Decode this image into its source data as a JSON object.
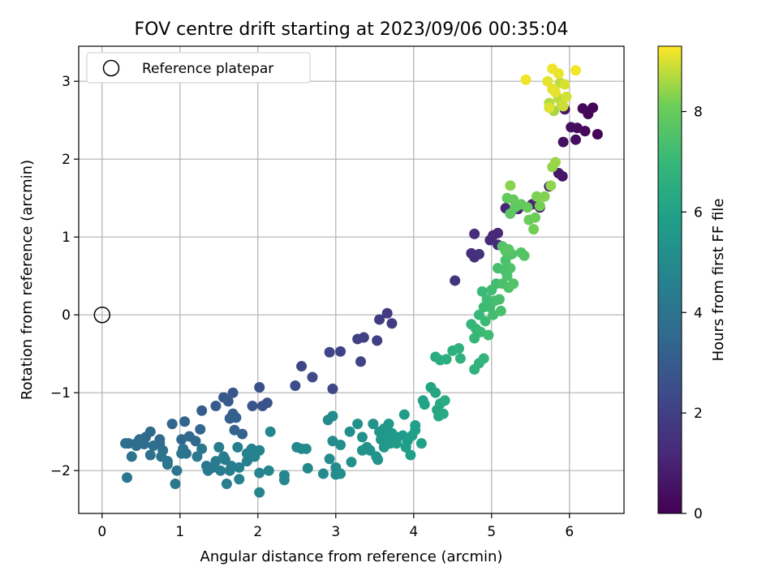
{
  "chart_data": {
    "type": "scatter",
    "title": "FOV centre drift starting at 2023/09/06 00:35:04",
    "xlabel": "Angular distance from reference (arcmin)",
    "ylabel": "Rotation from reference (arcmin)",
    "xlim": [
      -0.3,
      6.7
    ],
    "ylim": [
      -2.55,
      3.45
    ],
    "xticks": [
      "0",
      "1",
      "2",
      "3",
      "4",
      "5",
      "6"
    ],
    "yticks": [
      "−2",
      "−1",
      "0",
      "1",
      "2",
      "3"
    ],
    "grid": true,
    "legend": {
      "placement": "top-left",
      "label": "Reference platepar"
    },
    "reference_point": {
      "x": 0.0,
      "y": 0.0
    },
    "colorbar": {
      "label": "Hours from first FF file",
      "range": [
        0,
        9.3
      ],
      "ticks": [
        "0",
        "2",
        "4",
        "6",
        "8"
      ],
      "colormap": "viridis"
    },
    "series": [
      {
        "points": [
          [
            6.36,
            2.32,
            0.05
          ],
          [
            6.3,
            2.66,
            0.1
          ],
          [
            6.24,
            2.58,
            0.15
          ],
          [
            6.2,
            2.36,
            0.2
          ],
          [
            6.17,
            2.65,
            0.25
          ],
          [
            6.1,
            2.4,
            0.3
          ],
          [
            6.08,
            2.25,
            0.35
          ],
          [
            6.02,
            2.41,
            0.4
          ],
          [
            5.92,
            2.22,
            0.45
          ],
          [
            5.94,
            2.64,
            0.5
          ],
          [
            5.91,
            1.78,
            0.6
          ],
          [
            5.86,
            1.82,
            0.7
          ],
          [
            5.74,
            1.65,
            0.8
          ],
          [
            5.62,
            1.38,
            0.9
          ],
          [
            5.52,
            1.42,
            1.0
          ],
          [
            5.34,
            1.36,
            1.05
          ],
          [
            5.18,
            1.37,
            1.1
          ],
          [
            5.08,
            1.05,
            1.15
          ],
          [
            5.02,
            1.02,
            1.2
          ],
          [
            4.98,
            0.96,
            1.25
          ],
          [
            5.08,
            0.9,
            1.3
          ],
          [
            4.78,
            1.04,
            1.35
          ],
          [
            4.78,
            0.74,
            1.4
          ],
          [
            4.74,
            0.79,
            1.45
          ],
          [
            4.84,
            0.78,
            1.5
          ],
          [
            4.53,
            0.44,
            1.6
          ],
          [
            3.66,
            0.02,
            1.8
          ],
          [
            3.56,
            -0.06,
            1.85
          ],
          [
            3.72,
            -0.11,
            1.9
          ],
          [
            3.53,
            -0.33,
            1.95
          ],
          [
            3.36,
            -0.29,
            2.0
          ],
          [
            3.28,
            -0.31,
            2.05
          ],
          [
            3.32,
            -0.6,
            2.1
          ],
          [
            3.06,
            -0.47,
            2.15
          ],
          [
            2.92,
            -0.48,
            2.2
          ],
          [
            2.96,
            -0.95,
            2.25
          ],
          [
            2.56,
            -0.66,
            2.3
          ],
          [
            2.7,
            -0.8,
            2.35
          ],
          [
            2.48,
            -0.91,
            2.45
          ],
          [
            2.02,
            -0.93,
            2.6
          ],
          [
            2.12,
            -1.13,
            2.7
          ],
          [
            2.06,
            -1.17,
            2.75
          ],
          [
            1.93,
            -1.17,
            2.8
          ],
          [
            1.68,
            -1.0,
            2.85
          ],
          [
            1.56,
            -1.06,
            2.9
          ],
          [
            1.62,
            -1.11,
            2.95
          ],
          [
            1.46,
            -1.17,
            3.0
          ],
          [
            1.28,
            -1.23,
            3.05
          ],
          [
            1.68,
            -1.27,
            3.1
          ],
          [
            1.64,
            -1.33,
            3.15
          ],
          [
            1.72,
            -1.32,
            3.2
          ],
          [
            1.8,
            -1.53,
            3.25
          ],
          [
            1.7,
            -1.48,
            3.3
          ],
          [
            1.06,
            -1.37,
            3.35
          ],
          [
            0.9,
            -1.4,
            3.4
          ],
          [
            1.26,
            -1.47,
            3.45
          ],
          [
            1.02,
            -1.6,
            3.5
          ],
          [
            1.12,
            -1.56,
            3.52
          ],
          [
            1.2,
            -1.62,
            3.55
          ],
          [
            0.62,
            -1.5,
            3.6
          ],
          [
            0.56,
            -1.57,
            3.62
          ],
          [
            0.74,
            -1.6,
            3.65
          ],
          [
            0.74,
            -1.65,
            3.67
          ],
          [
            0.54,
            -1.66,
            3.7
          ],
          [
            0.48,
            -1.6,
            3.72
          ],
          [
            0.44,
            -1.65,
            3.75
          ],
          [
            0.34,
            -1.65,
            3.78
          ],
          [
            0.3,
            -1.65,
            3.8
          ],
          [
            0.44,
            -1.68,
            3.82
          ],
          [
            0.66,
            -1.68,
            3.85
          ],
          [
            0.78,
            -1.74,
            3.87
          ],
          [
            0.62,
            -1.8,
            3.9
          ],
          [
            1.04,
            -1.72,
            3.92
          ],
          [
            1.08,
            -1.78,
            3.95
          ],
          [
            0.38,
            -1.82,
            3.97
          ],
          [
            0.76,
            -1.82,
            4.0
          ],
          [
            0.84,
            -1.88,
            4.02
          ],
          [
            0.84,
            -1.92,
            4.05
          ],
          [
            0.96,
            -2.0,
            4.07
          ],
          [
            1.02,
            -1.78,
            4.1
          ],
          [
            0.32,
            -2.09,
            4.12
          ],
          [
            0.94,
            -2.17,
            4.15
          ],
          [
            1.22,
            -1.82,
            4.17
          ],
          [
            1.28,
            -1.72,
            4.2
          ],
          [
            1.34,
            -1.94,
            4.22
          ],
          [
            1.36,
            -2.0,
            4.25
          ],
          [
            1.42,
            -1.96,
            4.27
          ],
          [
            1.46,
            -1.88,
            4.3
          ],
          [
            1.52,
            -2.0,
            4.32
          ],
          [
            1.5,
            -1.7,
            4.35
          ],
          [
            1.56,
            -1.82,
            4.37
          ],
          [
            1.58,
            -1.86,
            4.4
          ],
          [
            1.66,
            -1.94,
            4.42
          ],
          [
            1.64,
            -2.0,
            4.45
          ],
          [
            1.6,
            -2.17,
            4.47
          ],
          [
            1.76,
            -1.96,
            4.5
          ],
          [
            1.74,
            -1.7,
            4.52
          ],
          [
            1.76,
            -2.11,
            4.55
          ],
          [
            1.86,
            -1.78,
            4.57
          ],
          [
            1.92,
            -1.72,
            4.6
          ],
          [
            1.86,
            -1.88,
            4.62
          ],
          [
            1.92,
            -1.82,
            4.65
          ],
          [
            1.96,
            -1.82,
            4.67
          ],
          [
            2.02,
            -1.74,
            4.7
          ],
          [
            2.02,
            -2.03,
            4.72
          ],
          [
            2.02,
            -2.28,
            4.75
          ],
          [
            2.14,
            -2.0,
            4.77
          ],
          [
            2.16,
            -1.5,
            4.8
          ],
          [
            2.34,
            -2.06,
            4.82
          ],
          [
            2.34,
            -2.12,
            4.85
          ],
          [
            2.5,
            -1.7,
            4.87
          ],
          [
            2.56,
            -1.72,
            4.9
          ],
          [
            2.62,
            -1.72,
            4.92
          ],
          [
            2.64,
            -1.97,
            4.95
          ],
          [
            2.84,
            -2.04,
            4.97
          ],
          [
            2.9,
            -1.35,
            5.0
          ],
          [
            2.96,
            -1.3,
            5.02
          ],
          [
            2.92,
            -1.85,
            5.05
          ],
          [
            2.96,
            -1.62,
            5.07
          ],
          [
            3.0,
            -1.96,
            5.1
          ],
          [
            3.0,
            -2.05,
            5.12
          ],
          [
            3.06,
            -2.04,
            5.15
          ],
          [
            3.06,
            -1.67,
            5.17
          ],
          [
            3.18,
            -1.5,
            5.2
          ],
          [
            3.2,
            -1.89,
            5.22
          ],
          [
            3.28,
            -1.4,
            5.25
          ],
          [
            3.34,
            -1.57,
            5.27
          ],
          [
            3.34,
            -1.74,
            5.3
          ],
          [
            3.4,
            -1.7,
            5.32
          ],
          [
            3.44,
            -1.74,
            5.35
          ],
          [
            3.48,
            -1.4,
            5.37
          ],
          [
            3.52,
            -1.82,
            5.4
          ],
          [
            3.54,
            -1.86,
            5.42
          ],
          [
            3.56,
            -1.5,
            5.45
          ],
          [
            3.58,
            -1.6,
            5.47
          ],
          [
            3.6,
            -1.55,
            5.5
          ],
          [
            3.62,
            -1.46,
            5.52
          ],
          [
            3.62,
            -1.7,
            5.55
          ],
          [
            3.66,
            -1.58,
            5.57
          ],
          [
            3.68,
            -1.4,
            5.6
          ],
          [
            3.7,
            -1.65,
            5.62
          ],
          [
            3.72,
            -1.52,
            5.65
          ],
          [
            3.74,
            -1.6,
            5.67
          ],
          [
            3.76,
            -1.56,
            5.7
          ],
          [
            3.78,
            -1.65,
            5.72
          ],
          [
            3.86,
            -1.55,
            5.75
          ],
          [
            3.88,
            -1.28,
            5.77
          ],
          [
            3.9,
            -1.7,
            5.8
          ],
          [
            3.92,
            -1.62,
            5.82
          ],
          [
            3.96,
            -1.8,
            5.85
          ],
          [
            3.98,
            -1.55,
            5.87
          ],
          [
            4.02,
            -1.42,
            5.9
          ],
          [
            4.02,
            -1.48,
            5.92
          ],
          [
            4.1,
            -1.65,
            5.95
          ],
          [
            4.12,
            -1.1,
            6.0
          ],
          [
            4.14,
            -1.15,
            6.05
          ],
          [
            4.22,
            -0.93,
            6.1
          ],
          [
            4.28,
            -1.0,
            6.15
          ],
          [
            4.3,
            -1.22,
            6.2
          ],
          [
            4.32,
            -1.3,
            6.25
          ],
          [
            4.34,
            -1.14,
            6.3
          ],
          [
            4.38,
            -1.27,
            6.35
          ],
          [
            4.4,
            -1.1,
            6.4
          ],
          [
            4.28,
            -0.54,
            6.45
          ],
          [
            4.34,
            -0.58,
            6.5
          ],
          [
            4.42,
            -0.57,
            6.55
          ],
          [
            4.5,
            -0.46,
            6.6
          ],
          [
            4.58,
            -0.43,
            6.65
          ],
          [
            4.6,
            -0.56,
            6.7
          ],
          [
            4.78,
            -0.7,
            6.75
          ],
          [
            4.84,
            -0.62,
            6.8
          ],
          [
            4.9,
            -0.56,
            6.85
          ],
          [
            4.74,
            -0.12,
            6.9
          ],
          [
            4.78,
            -0.3,
            6.95
          ],
          [
            4.8,
            -0.18,
            7.0
          ],
          [
            4.84,
            0.0,
            7.02
          ],
          [
            4.86,
            -0.22,
            7.05
          ],
          [
            4.88,
            0.3,
            7.07
          ],
          [
            4.9,
            0.1,
            7.1
          ],
          [
            4.92,
            -0.08,
            7.12
          ],
          [
            4.94,
            0.2,
            7.15
          ],
          [
            4.96,
            -0.26,
            7.17
          ],
          [
            4.98,
            0.1,
            7.2
          ],
          [
            5.0,
            0.32,
            7.22
          ],
          [
            5.02,
            0.0,
            7.25
          ],
          [
            5.04,
            0.18,
            7.27
          ],
          [
            5.06,
            0.4,
            7.3
          ],
          [
            5.08,
            0.6,
            7.32
          ],
          [
            5.1,
            0.2,
            7.35
          ],
          [
            5.12,
            0.05,
            7.37
          ],
          [
            5.14,
            0.4,
            7.4
          ],
          [
            5.16,
            0.58,
            7.42
          ],
          [
            5.18,
            0.7,
            7.45
          ],
          [
            5.2,
            0.5,
            7.47
          ],
          [
            5.22,
            0.35,
            7.5
          ],
          [
            5.24,
            0.6,
            7.52
          ],
          [
            5.26,
            0.78,
            7.55
          ],
          [
            5.28,
            0.4,
            7.57
          ],
          [
            5.38,
            0.8,
            7.6
          ],
          [
            5.42,
            0.76,
            7.62
          ],
          [
            5.14,
            0.88,
            7.65
          ],
          [
            5.18,
            0.82,
            7.67
          ],
          [
            5.22,
            0.84,
            7.7
          ],
          [
            5.24,
            1.3,
            7.75
          ],
          [
            5.3,
            1.38,
            7.8
          ],
          [
            5.32,
            1.4,
            7.85
          ],
          [
            5.38,
            1.42,
            7.9
          ],
          [
            5.2,
            1.5,
            7.92
          ],
          [
            5.28,
            1.48,
            7.95
          ],
          [
            5.46,
            1.38,
            8.0
          ],
          [
            5.48,
            1.22,
            8.05
          ],
          [
            5.56,
            1.25,
            8.1
          ],
          [
            5.54,
            1.1,
            8.15
          ],
          [
            5.62,
            1.4,
            8.2
          ],
          [
            5.58,
            1.52,
            8.25
          ],
          [
            5.68,
            1.52,
            8.3
          ],
          [
            5.24,
            1.66,
            8.35
          ],
          [
            5.76,
            1.66,
            8.4
          ],
          [
            5.78,
            1.9,
            8.45
          ],
          [
            5.82,
            1.96,
            8.5
          ],
          [
            5.8,
            2.62,
            8.6
          ],
          [
            5.74,
            2.72,
            8.7
          ],
          [
            5.86,
            2.78,
            8.75
          ],
          [
            5.88,
            2.98,
            8.8
          ],
          [
            5.9,
            2.7,
            8.85
          ],
          [
            5.92,
            2.68,
            8.9
          ],
          [
            5.96,
            2.8,
            8.95
          ],
          [
            5.94,
            2.96,
            9.0
          ],
          [
            5.74,
            2.66,
            9.05
          ],
          [
            5.78,
            2.9,
            9.08
          ],
          [
            5.72,
            3.0,
            9.1
          ],
          [
            5.82,
            2.86,
            9.12
          ],
          [
            5.86,
            3.1,
            9.15
          ],
          [
            5.78,
            3.16,
            9.18
          ],
          [
            5.44,
            3.02,
            9.2
          ],
          [
            6.08,
            3.14,
            9.22
          ]
        ]
      }
    ]
  }
}
